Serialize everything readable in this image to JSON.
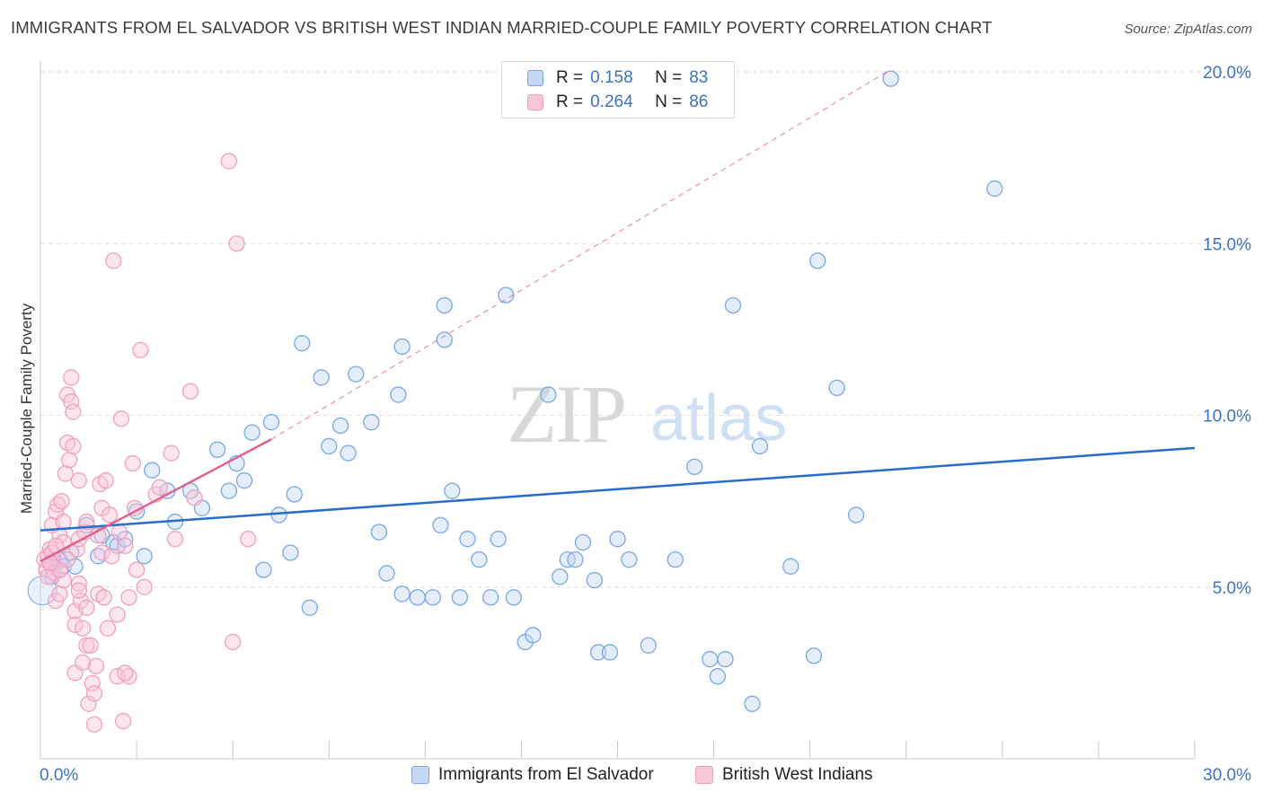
{
  "title": "IMMIGRANTS FROM EL SALVADOR VS BRITISH WEST INDIAN MARRIED-COUPLE FAMILY POVERTY CORRELATION CHART",
  "source": "Source: ZipAtlas.com",
  "watermark": {
    "zip": "ZIP",
    "atlas": "atlas"
  },
  "legend": {
    "r_label": "R =",
    "n_label": "N =",
    "rows": [
      {
        "r": "0.158",
        "n": "83"
      },
      {
        "r": "0.264",
        "n": "86"
      }
    ]
  },
  "chart_data": {
    "type": "scatter",
    "title": "IMMIGRANTS FROM EL SALVADOR VS BRITISH WEST INDIAN MARRIED-COUPLE FAMILY POVERTY CORRELATION CHART",
    "xlabel": "",
    "ylabel": "Married-Couple Family Poverty",
    "xlim": [
      0,
      30
    ],
    "ylim": [
      0,
      20
    ],
    "x_tick_labels": [
      "0.0%",
      "30.0%"
    ],
    "y_ticks": [
      5,
      10,
      15,
      20
    ],
    "y_tick_labels": [
      "5.0%",
      "10.0%",
      "15.0%",
      "20.0%"
    ],
    "grid": true,
    "legend_position": "bottom-center",
    "series": [
      {
        "name": "Immigrants from El Salvador",
        "color": "#7aa6e6",
        "line_color": "#2a6ccc",
        "trend": {
          "x0": 0,
          "y0": 6.65,
          "x1": 30,
          "y1": 9.05
        },
        "points": [
          [
            0.3,
            5.3
          ],
          [
            0.4,
            5.7
          ],
          [
            0.5,
            5.8
          ],
          [
            0.6,
            5.6
          ],
          [
            0.8,
            6.0
          ],
          [
            1.2,
            6.8
          ],
          [
            1.6,
            6.5
          ],
          [
            1.9,
            6.3
          ],
          [
            2.0,
            6.2
          ],
          [
            2.5,
            7.2
          ],
          [
            2.7,
            5.9
          ],
          [
            2.9,
            8.4
          ],
          [
            3.3,
            7.8
          ],
          [
            3.5,
            6.9
          ],
          [
            3.9,
            7.8
          ],
          [
            4.2,
            7.3
          ],
          [
            4.6,
            9.0
          ],
          [
            4.9,
            7.8
          ],
          [
            5.1,
            8.6
          ],
          [
            5.3,
            8.1
          ],
          [
            5.5,
            9.5
          ],
          [
            5.8,
            5.5
          ],
          [
            6.0,
            9.8
          ],
          [
            6.2,
            7.1
          ],
          [
            6.5,
            6.0
          ],
          [
            6.6,
            7.7
          ],
          [
            6.8,
            12.1
          ],
          [
            7.0,
            4.4
          ],
          [
            7.3,
            11.1
          ],
          [
            7.5,
            9.1
          ],
          [
            7.8,
            9.7
          ],
          [
            8.0,
            8.9
          ],
          [
            8.2,
            11.2
          ],
          [
            8.6,
            9.8
          ],
          [
            8.8,
            6.6
          ],
          [
            9.0,
            5.4
          ],
          [
            9.3,
            10.6
          ],
          [
            9.4,
            4.8
          ],
          [
            9.4,
            12.0
          ],
          [
            9.8,
            4.7
          ],
          [
            10.2,
            4.7
          ],
          [
            10.4,
            6.8
          ],
          [
            10.5,
            12.2
          ],
          [
            10.7,
            7.8
          ],
          [
            10.5,
            13.2
          ],
          [
            10.9,
            4.7
          ],
          [
            11.1,
            6.4
          ],
          [
            11.4,
            5.8
          ],
          [
            11.7,
            4.7
          ],
          [
            11.9,
            6.4
          ],
          [
            12.1,
            13.5
          ],
          [
            12.3,
            4.7
          ],
          [
            12.6,
            3.4
          ],
          [
            12.8,
            3.6
          ],
          [
            13.2,
            10.6
          ],
          [
            13.5,
            5.3
          ],
          [
            13.7,
            5.8
          ],
          [
            13.9,
            5.8
          ],
          [
            14.1,
            6.3
          ],
          [
            14.4,
            5.2
          ],
          [
            14.5,
            3.1
          ],
          [
            14.8,
            3.1
          ],
          [
            15.0,
            6.4
          ],
          [
            15.3,
            5.8
          ],
          [
            15.8,
            3.3
          ],
          [
            16.5,
            5.8
          ],
          [
            17.0,
            8.5
          ],
          [
            17.4,
            2.9
          ],
          [
            17.6,
            2.4
          ],
          [
            17.8,
            2.9
          ],
          [
            18.0,
            13.2
          ],
          [
            18.5,
            1.6
          ],
          [
            18.7,
            9.1
          ],
          [
            19.5,
            5.6
          ],
          [
            20.1,
            3.0
          ],
          [
            20.2,
            14.5
          ],
          [
            20.7,
            10.8
          ],
          [
            21.2,
            7.1
          ],
          [
            22.1,
            19.8
          ],
          [
            24.8,
            16.6
          ],
          [
            1.5,
            5.9
          ],
          [
            0.9,
            5.6
          ],
          [
            2.2,
            6.4
          ]
        ]
      },
      {
        "name": "British West Indians",
        "color": "#f0a0bf",
        "line_color": "#e0608e",
        "trend": {
          "x0": 0,
          "y0": 5.75,
          "x1": 6.0,
          "y1": 9.3
        },
        "trend_dashed": {
          "x0": 6.0,
          "y0": 9.3,
          "x1": 22.0,
          "y1": 20.0
        },
        "points": [
          [
            0.1,
            5.8
          ],
          [
            0.15,
            5.5
          ],
          [
            0.2,
            5.9
          ],
          [
            0.25,
            6.1
          ],
          [
            0.3,
            5.6
          ],
          [
            0.3,
            6.8
          ],
          [
            0.35,
            5.4
          ],
          [
            0.4,
            7.2
          ],
          [
            0.4,
            4.6
          ],
          [
            0.45,
            7.4
          ],
          [
            0.5,
            6.5
          ],
          [
            0.5,
            4.8
          ],
          [
            0.55,
            7.5
          ],
          [
            0.6,
            5.2
          ],
          [
            0.6,
            6.9
          ],
          [
            0.65,
            8.3
          ],
          [
            0.7,
            9.2
          ],
          [
            0.7,
            10.6
          ],
          [
            0.75,
            8.7
          ],
          [
            0.8,
            10.4
          ],
          [
            0.8,
            11.1
          ],
          [
            0.85,
            10.1
          ],
          [
            0.85,
            9.1
          ],
          [
            0.9,
            4.3
          ],
          [
            0.9,
            3.9
          ],
          [
            0.9,
            2.5
          ],
          [
            0.95,
            6.1
          ],
          [
            1.0,
            5.1
          ],
          [
            1.0,
            6.4
          ],
          [
            1.0,
            8.1
          ],
          [
            1.05,
            4.6
          ],
          [
            1.1,
            3.8
          ],
          [
            1.1,
            2.8
          ],
          [
            1.15,
            6.6
          ],
          [
            1.2,
            4.4
          ],
          [
            1.2,
            3.3
          ],
          [
            1.25,
            1.6
          ],
          [
            1.3,
            3.3
          ],
          [
            1.35,
            2.2
          ],
          [
            1.4,
            1.9
          ],
          [
            1.4,
            1.0
          ],
          [
            1.45,
            2.7
          ],
          [
            1.5,
            4.8
          ],
          [
            1.5,
            6.5
          ],
          [
            1.55,
            8.0
          ],
          [
            1.6,
            7.3
          ],
          [
            1.6,
            6.0
          ],
          [
            1.65,
            4.7
          ],
          [
            1.7,
            8.1
          ],
          [
            1.75,
            3.8
          ],
          [
            1.8,
            7.1
          ],
          [
            1.85,
            5.9
          ],
          [
            1.9,
            14.5
          ],
          [
            2.0,
            4.2
          ],
          [
            2.0,
            2.4
          ],
          [
            2.05,
            6.6
          ],
          [
            2.1,
            9.9
          ],
          [
            2.15,
            1.1
          ],
          [
            2.2,
            6.2
          ],
          [
            2.3,
            4.7
          ],
          [
            2.3,
            2.4
          ],
          [
            2.4,
            8.6
          ],
          [
            2.45,
            7.3
          ],
          [
            2.5,
            5.5
          ],
          [
            2.6,
            11.9
          ],
          [
            2.7,
            5.0
          ],
          [
            3.0,
            7.7
          ],
          [
            3.1,
            7.9
          ],
          [
            3.4,
            8.9
          ],
          [
            3.5,
            6.4
          ],
          [
            3.9,
            10.7
          ],
          [
            4.0,
            7.6
          ],
          [
            4.9,
            17.4
          ],
          [
            5.0,
            3.4
          ],
          [
            5.1,
            15.0
          ],
          [
            5.4,
            6.4
          ],
          [
            0.2,
            5.3
          ],
          [
            0.3,
            6.0
          ],
          [
            0.5,
            5.5
          ],
          [
            0.6,
            6.3
          ],
          [
            1.2,
            6.9
          ],
          [
            0.4,
            6.2
          ],
          [
            0.25,
            5.7
          ],
          [
            1.0,
            4.9
          ],
          [
            0.7,
            5.8
          ],
          [
            2.2,
            2.5
          ]
        ]
      }
    ]
  },
  "bottom_legend": [
    {
      "label": "Immigrants from El Salvador"
    },
    {
      "label": "British West Indians"
    }
  ],
  "colors": {
    "blue_fill": "#c4d8f3",
    "blue_stroke": "#7aa6e6",
    "pink_fill": "#f8c6d7",
    "pink_stroke": "#f0a0bf",
    "axis_text_blue": "#3a73c4",
    "grid": "#dcdcdc"
  }
}
